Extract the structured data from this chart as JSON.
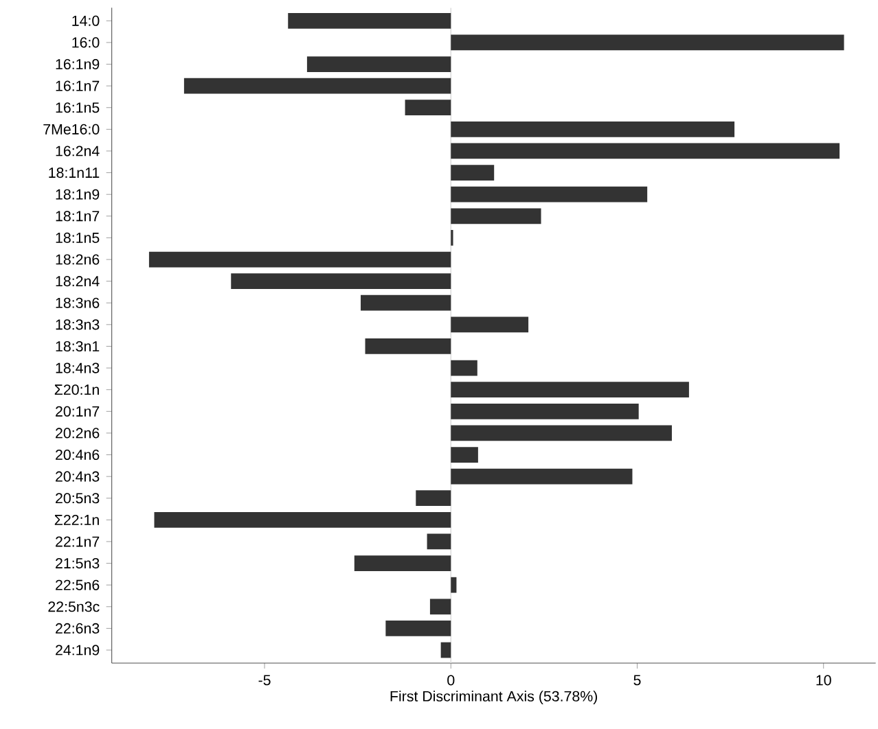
{
  "chart_data": {
    "type": "bar",
    "orientation": "horizontal",
    "xlabel": "First Discriminant Axis (53.78%)",
    "categories": [
      "14:0",
      "16:0",
      "16:1n9",
      "16:1n7",
      "16:1n5",
      "7Me16:0",
      "16:2n4",
      "18:1n11",
      "18:1n9",
      "18:1n7",
      "18:1n5",
      "18:2n6",
      "18:2n4",
      "18:3n6",
      "18:3n3",
      "18:3n1",
      "18:4n3",
      "Σ20:1n",
      "20:1n7",
      "20:2n6",
      "20:4n6",
      "20:4n3",
      "20:5n3",
      "Σ22:1n",
      "22:1n7",
      "21:5n3",
      "22:5n6",
      "22:5n3c",
      "22:6n3",
      "24:1n9"
    ],
    "values": [
      -4.37,
      10.55,
      -3.86,
      -7.16,
      -1.23,
      7.61,
      10.43,
      1.16,
      5.27,
      2.42,
      0.06,
      -8.1,
      -5.9,
      -2.42,
      2.08,
      -2.3,
      0.71,
      6.39,
      5.04,
      5.93,
      0.73,
      4.87,
      -0.94,
      -7.96,
      -0.64,
      -2.59,
      0.15,
      -0.56,
      -1.75,
      -0.27
    ],
    "color": "#333333",
    "xlim": [
      -9.1,
      11.4
    ],
    "xticks": [
      -5,
      0,
      5,
      10
    ],
    "ref_lines": [
      {
        "axis": "x",
        "value": 0,
        "color": "#dddddd"
      }
    ]
  }
}
